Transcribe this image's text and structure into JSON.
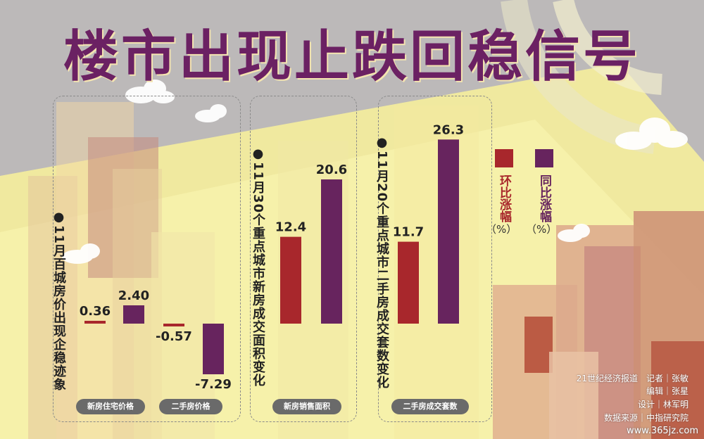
{
  "title": "楼市出现止跌回稳信号",
  "colors": {
    "mom": "#a8272c",
    "yoy": "#67245e",
    "title": "#6b2163"
  },
  "legend": {
    "mom_label": "环比涨幅",
    "yoy_label": "同比涨幅",
    "unit": "（%）"
  },
  "groups": [
    {
      "annotation": "●11月百城房价出现企稳迹象",
      "pills": [
        "新房住宅价格",
        "二手房价格"
      ]
    },
    {
      "annotation": "●11月30个重点城市新房成交面积变化",
      "pills": [
        "新房销售面积"
      ]
    },
    {
      "annotation": "●11月20个重点城市二手房成交套数变化",
      "pills": [
        "二手房成交套数"
      ]
    }
  ],
  "credits": [
    "21世纪经济报道　记者｜张敏",
    "编辑｜张星",
    "设计｜林军明",
    "数据来源｜中指研究院"
  ],
  "watermark": "www.365jz.com",
  "chart_data": {
    "type": "bar",
    "categories": [
      "新房住宅价格",
      "二手房价格",
      "新房销售面积",
      "二手房成交套数"
    ],
    "series": [
      {
        "name": "环比涨幅",
        "values": [
          0.36,
          -0.57,
          12.4,
          11.7
        ],
        "labels": [
          "0.36",
          "-0.57",
          "12.4",
          "11.7"
        ]
      },
      {
        "name": "同比涨幅",
        "values": [
          2.4,
          -7.29,
          20.6,
          26.3
        ],
        "labels": [
          "2.40",
          "-7.29",
          "20.6",
          "26.3"
        ]
      }
    ],
    "unit": "%"
  }
}
